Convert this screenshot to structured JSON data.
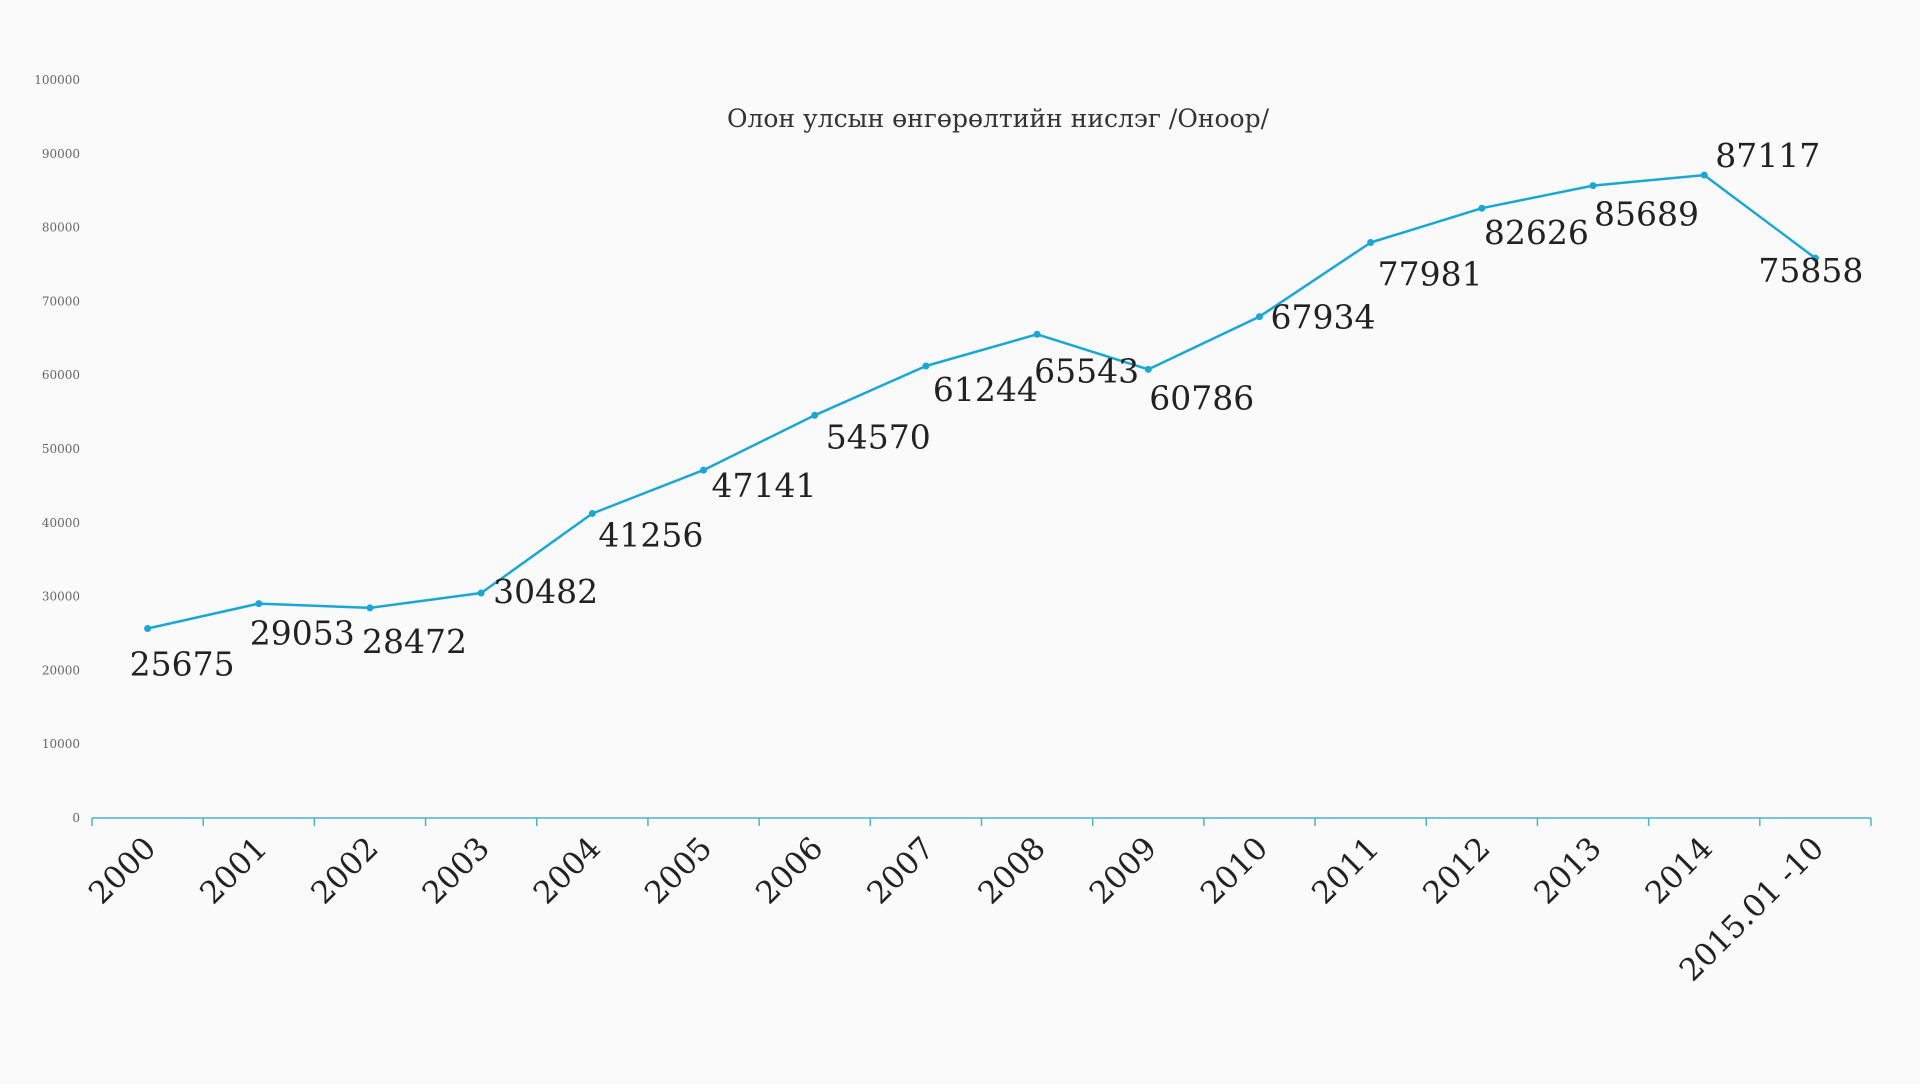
{
  "chart_data": {
    "type": "line",
    "title": "Олон улсын өнгөрөлтийн нислэг  /Оноор/",
    "xlabel": "",
    "ylabel": "",
    "categories": [
      "2000",
      "2001",
      "2002",
      "2003",
      "2004",
      "2005",
      "2006",
      "2007",
      "2008",
      "2009",
      "2010",
      "2011",
      "2012",
      "2013",
      "2014",
      "2015.01 -10"
    ],
    "series": [
      {
        "values": [
          25675,
          29053,
          28472,
          30482,
          41256,
          47141,
          54570,
          61244,
          65543,
          60786,
          67934,
          77981,
          82626,
          85689,
          87117,
          75858
        ]
      }
    ],
    "data_labels": [
      "25675",
      "29053",
      "28472",
      "30482",
      "41256",
      "47141",
      "54570",
      "61244",
      "65543",
      "60786",
      "67934",
      "77981",
      "82626",
      "85689",
      "87117",
      "75858"
    ],
    "ylim": [
      0,
      100000
    ],
    "yticks": [
      0,
      10000,
      20000,
      30000,
      40000,
      50000,
      60000,
      70000,
      80000,
      90000,
      100000
    ],
    "ytick_labels": [
      "0",
      "10000",
      "20000",
      "30000",
      "40000",
      "50000",
      "60000",
      "70000",
      "80000",
      "90000",
      "100000"
    ],
    "grid": false,
    "legend": "none",
    "colors": {
      "line": "#1ba7d4",
      "axis": "#4bb5c8"
    }
  }
}
